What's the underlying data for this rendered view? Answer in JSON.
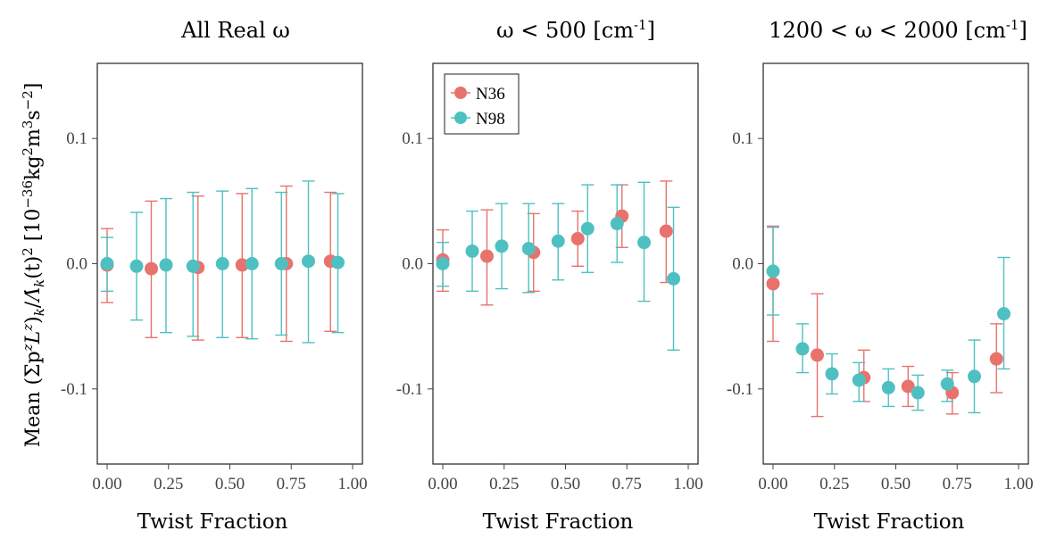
{
  "colors": {
    "N36": "#E8736C",
    "N98": "#4FC0C2"
  },
  "ylabel": "Mean  (Σp^zL^z)_k / Λ̇_k(t)^2  [10^-36 kg^2 m^3 s^-2]",
  "ylabel_parts": {
    "mean": "Mean",
    "expr": "(Σp",
    "sup_z1": "z",
    "L": "L",
    "sup_z2": "z",
    "close": ")",
    "sub_k1": "k",
    "slash": "/",
    "Adot": "Λ̇",
    "sub_k2": "k",
    "t": "(t)",
    "sq": "2",
    "unit_open": "[10",
    "exp": "−36",
    "kg": "kg",
    "kg_exp": "2",
    "m": "m",
    "m_exp": "3",
    "s": "s",
    "s_exp": "−2",
    "unit_close": "]"
  },
  "legend": [
    {
      "series": "N36",
      "label": "N36",
      "icon": "circle-marker"
    },
    {
      "series": "N98",
      "label": "N98",
      "icon": "circle-marker"
    }
  ],
  "chart_data": [
    {
      "type": "scatter",
      "title": "All Real ω",
      "xlabel": "Twist Fraction",
      "xlim": [
        -0.04,
        1.04
      ],
      "ylim": [
        -0.16,
        0.16
      ],
      "xticks": [
        0.0,
        0.25,
        0.5,
        0.75,
        1.0
      ],
      "xtick_labels": [
        "0.00",
        "0.25",
        "0.50",
        "0.75",
        "1.00"
      ],
      "yticks": [
        0.1,
        0.0,
        -0.1
      ],
      "ytick_labels": [
        "0.1",
        "0.0",
        "-0.1"
      ],
      "series": [
        {
          "name": "N36",
          "points": [
            {
              "x": 0.0,
              "y": -0.001,
              "lo": -0.031,
              "hi": 0.028
            },
            {
              "x": 0.18,
              "y": -0.004,
              "lo": -0.059,
              "hi": 0.05
            },
            {
              "x": 0.37,
              "y": -0.003,
              "lo": -0.061,
              "hi": 0.054
            },
            {
              "x": 0.55,
              "y": -0.001,
              "lo": -0.059,
              "hi": 0.056
            },
            {
              "x": 0.73,
              "y": 0.0,
              "lo": -0.062,
              "hi": 0.062
            },
            {
              "x": 0.91,
              "y": 0.002,
              "lo": -0.054,
              "hi": 0.057
            }
          ]
        },
        {
          "name": "N98",
          "points": [
            {
              "x": 0.0,
              "y": 0.0,
              "lo": -0.022,
              "hi": 0.021
            },
            {
              "x": 0.12,
              "y": -0.002,
              "lo": -0.045,
              "hi": 0.041
            },
            {
              "x": 0.24,
              "y": -0.001,
              "lo": -0.055,
              "hi": 0.052
            },
            {
              "x": 0.35,
              "y": -0.002,
              "lo": -0.058,
              "hi": 0.057
            },
            {
              "x": 0.47,
              "y": 0.0,
              "lo": -0.059,
              "hi": 0.058
            },
            {
              "x": 0.59,
              "y": 0.0,
              "lo": -0.06,
              "hi": 0.06
            },
            {
              "x": 0.71,
              "y": 0.0,
              "lo": -0.057,
              "hi": 0.057
            },
            {
              "x": 0.82,
              "y": 0.002,
              "lo": -0.063,
              "hi": 0.066
            },
            {
              "x": 0.94,
              "y": 0.001,
              "lo": -0.055,
              "hi": 0.056
            }
          ]
        }
      ]
    },
    {
      "type": "scatter",
      "title": "ω < 500 [cm-1]",
      "title_parts": {
        "main": "ω < 500 [cm",
        "sup": "-1",
        "end": "]"
      },
      "xlabel": "",
      "xlim": [
        -0.04,
        1.04
      ],
      "ylim": [
        -0.16,
        0.16
      ],
      "xticks": [
        0.0,
        0.25,
        0.5,
        0.75,
        1.0
      ],
      "xtick_labels": [
        "0.00",
        "0.25",
        "0.50",
        "0.75",
        "1.00"
      ],
      "yticks": [
        0.1,
        0.0,
        -0.1
      ],
      "ytick_labels": [
        "0.1",
        "0.0",
        "-0.1"
      ],
      "legend_position": "top-left",
      "series": [
        {
          "name": "N36",
          "points": [
            {
              "x": 0.0,
              "y": 0.003,
              "lo": -0.022,
              "hi": 0.027
            },
            {
              "x": 0.18,
              "y": 0.006,
              "lo": -0.033,
              "hi": 0.043
            },
            {
              "x": 0.37,
              "y": 0.009,
              "lo": -0.022,
              "hi": 0.04
            },
            {
              "x": 0.55,
              "y": 0.02,
              "lo": -0.002,
              "hi": 0.042
            },
            {
              "x": 0.73,
              "y": 0.038,
              "lo": 0.013,
              "hi": 0.063
            },
            {
              "x": 0.91,
              "y": 0.026,
              "lo": -0.015,
              "hi": 0.066
            }
          ]
        },
        {
          "name": "N98",
          "points": [
            {
              "x": 0.0,
              "y": 0.0,
              "lo": -0.018,
              "hi": 0.017
            },
            {
              "x": 0.12,
              "y": 0.01,
              "lo": -0.022,
              "hi": 0.042
            },
            {
              "x": 0.24,
              "y": 0.014,
              "lo": -0.02,
              "hi": 0.048
            },
            {
              "x": 0.35,
              "y": 0.012,
              "lo": -0.023,
              "hi": 0.048
            },
            {
              "x": 0.47,
              "y": 0.018,
              "lo": -0.013,
              "hi": 0.048
            },
            {
              "x": 0.59,
              "y": 0.028,
              "lo": -0.007,
              "hi": 0.063
            },
            {
              "x": 0.71,
              "y": 0.032,
              "lo": 0.001,
              "hi": 0.063
            },
            {
              "x": 0.82,
              "y": 0.017,
              "lo": -0.03,
              "hi": 0.065
            },
            {
              "x": 0.94,
              "y": -0.012,
              "lo": -0.069,
              "hi": 0.045
            }
          ]
        }
      ]
    },
    {
      "type": "scatter",
      "title": "1200 < ω < 2000 [cm-1]",
      "title_parts": {
        "main": "1200 < ω < 2000 [cm",
        "sup": "-1",
        "end": "]"
      },
      "xlabel": "Twist Fraction",
      "xlim": [
        -0.04,
        1.04
      ],
      "ylim": [
        -0.16,
        0.16
      ],
      "xticks": [
        0.0,
        0.25,
        0.5,
        0.75,
        1.0
      ],
      "xtick_labels": [
        "0.00",
        "0.25",
        "0.50",
        "0.75",
        "1.00"
      ],
      "yticks": [
        0.1,
        0.0,
        -0.1
      ],
      "ytick_labels": [
        "0.1",
        "0.0",
        "-0.1"
      ],
      "series": [
        {
          "name": "N36",
          "points": [
            {
              "x": 0.0,
              "y": -0.016,
              "lo": -0.062,
              "hi": 0.03
            },
            {
              "x": 0.18,
              "y": -0.073,
              "lo": -0.122,
              "hi": -0.024
            },
            {
              "x": 0.37,
              "y": -0.091,
              "lo": -0.11,
              "hi": -0.069
            },
            {
              "x": 0.55,
              "y": -0.098,
              "lo": -0.114,
              "hi": -0.082
            },
            {
              "x": 0.73,
              "y": -0.103,
              "lo": -0.12,
              "hi": -0.087
            },
            {
              "x": 0.91,
              "y": -0.076,
              "lo": -0.103,
              "hi": -0.048
            }
          ]
        },
        {
          "name": "N98",
          "points": [
            {
              "x": 0.0,
              "y": -0.006,
              "lo": -0.041,
              "hi": 0.029
            },
            {
              "x": 0.12,
              "y": -0.068,
              "lo": -0.087,
              "hi": -0.048
            },
            {
              "x": 0.24,
              "y": -0.088,
              "lo": -0.104,
              "hi": -0.072
            },
            {
              "x": 0.35,
              "y": -0.093,
              "lo": -0.11,
              "hi": -0.079
            },
            {
              "x": 0.47,
              "y": -0.099,
              "lo": -0.114,
              "hi": -0.084
            },
            {
              "x": 0.59,
              "y": -0.103,
              "lo": -0.117,
              "hi": -0.089
            },
            {
              "x": 0.71,
              "y": -0.096,
              "lo": -0.11,
              "hi": -0.085
            },
            {
              "x": 0.82,
              "y": -0.09,
              "lo": -0.119,
              "hi": -0.061
            },
            {
              "x": 0.94,
              "y": -0.04,
              "lo": -0.084,
              "hi": 0.005
            }
          ]
        }
      ]
    }
  ]
}
